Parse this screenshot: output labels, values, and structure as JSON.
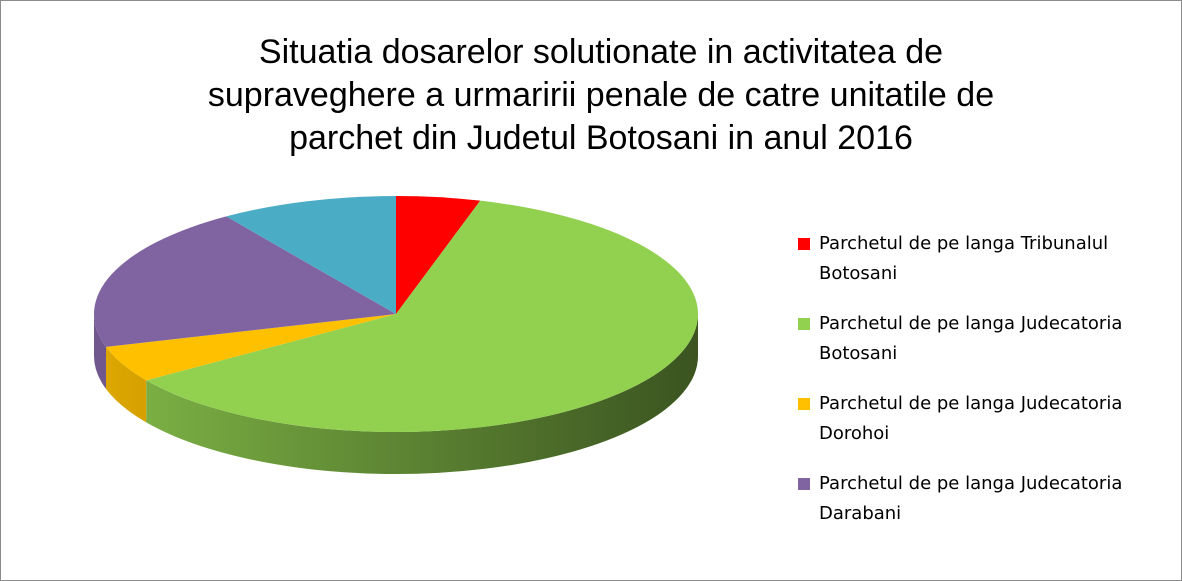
{
  "chart_data": {
    "type": "pie3d",
    "title": "Situatia dosarelor solutionate in activitatea de\nsupraveghere a urmaririi penale de catre unitatile de\nparchet din Judetul Botosani in anul 2016",
    "categories": [
      "Parchetul de pe langa Tribunalul Botosani",
      "Parchetul de pe langa Judecatoria Botosani",
      "Parchetul de pe langa Judecatoria Dorohoi",
      "Parchetul de pe langa Judecatoria Darabani",
      null
    ],
    "values": [
      4.5,
      61,
      5,
      20,
      9.5
    ],
    "colors": [
      "#ff0000",
      "#92d050",
      "#ffc000",
      "#8064a2",
      "#4bacc6"
    ],
    "legend": "right"
  }
}
